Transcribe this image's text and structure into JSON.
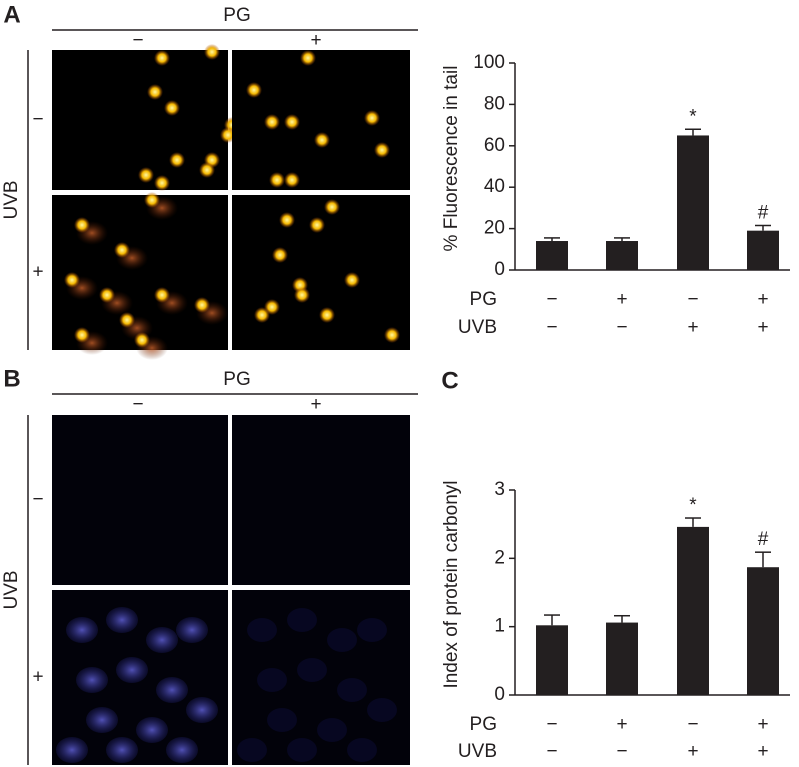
{
  "panels": [
    {
      "label": "A",
      "header": "PG",
      "columns": [
        "−",
        "+"
      ],
      "row_axis": "UVB",
      "rows": [
        "−",
        "+"
      ]
    },
    {
      "label": "B",
      "header": "PG",
      "columns": [
        "−",
        "+"
      ],
      "row_axis": "UVB",
      "rows": [
        "−",
        "+"
      ]
    }
  ],
  "chart_data": [
    {
      "type": "bar",
      "ylabel": "% Fluorescence in tail",
      "category_rows": [
        {
          "name": "PG",
          "labels": [
            "−",
            "+",
            "−",
            "+"
          ]
        },
        {
          "name": "UVB",
          "labels": [
            "−",
            "−",
            "+",
            "+"
          ]
        }
      ],
      "values": [
        14,
        14,
        65,
        19
      ],
      "errors": [
        1.5,
        1.5,
        3,
        2.5
      ],
      "annotations": [
        null,
        null,
        "*",
        "#"
      ],
      "color": "#231f20",
      "ylim": [
        0,
        100
      ],
      "yticks": [
        0,
        20,
        40,
        60,
        80,
        100
      ]
    },
    {
      "type": "bar",
      "label": "C",
      "ylabel": "Index of protein carbonyl",
      "category_rows": [
        {
          "name": "PG",
          "labels": [
            "−",
            "+",
            "−",
            "+"
          ]
        },
        {
          "name": "UVB",
          "labels": [
            "−",
            "−",
            "+",
            "+"
          ]
        }
      ],
      "values": [
        1.02,
        1.06,
        2.46,
        1.87
      ],
      "errors": [
        0.15,
        0.1,
        0.13,
        0.22
      ],
      "annotations": [
        null,
        null,
        "*",
        "#"
      ],
      "color": "#231f20",
      "ylim": [
        0,
        3
      ],
      "yticks": [
        0,
        1,
        2,
        3
      ]
    }
  ]
}
